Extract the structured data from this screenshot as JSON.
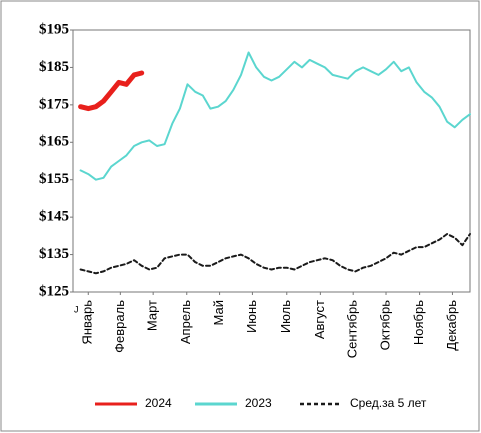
{
  "chart_data": {
    "type": "line",
    "annotations": [
      "J"
    ],
    "x": [
      1,
      2,
      3,
      4,
      5,
      6,
      7,
      8,
      9,
      10,
      11,
      12,
      13,
      14,
      15,
      16,
      17,
      18,
      19,
      20,
      21,
      22,
      23,
      24,
      25,
      26,
      27,
      28,
      29,
      30,
      31,
      32,
      33,
      34,
      35,
      36,
      37,
      38,
      39,
      40,
      41,
      42,
      43,
      44,
      45,
      46,
      47,
      48,
      49,
      50,
      51,
      52
    ],
    "xlim": [
      0,
      52
    ],
    "xticks": [
      {
        "value": 2,
        "label": "Январь"
      },
      {
        "value": 6.2,
        "label": "Февраль"
      },
      {
        "value": 10.5,
        "label": "Март"
      },
      {
        "value": 14.9,
        "label": "Апрель"
      },
      {
        "value": 19.2,
        "label": "Май"
      },
      {
        "value": 23.5,
        "label": "Июнь"
      },
      {
        "value": 28,
        "label": "Июль"
      },
      {
        "value": 32.4,
        "label": "Август"
      },
      {
        "value": 36.7,
        "label": "Сентябрь"
      },
      {
        "value": 41,
        "label": "Октябрь"
      },
      {
        "value": 45.4,
        "label": "Ноябрь"
      },
      {
        "value": 49.7,
        "label": "Декабрь"
      }
    ],
    "ylim": [
      125,
      195
    ],
    "yticks": [
      {
        "value": 125,
        "label": "$125"
      },
      {
        "value": 135,
        "label": "$135"
      },
      {
        "value": 145,
        "label": "$145"
      },
      {
        "value": 155,
        "label": "$155"
      },
      {
        "value": 165,
        "label": "$165"
      },
      {
        "value": 175,
        "label": "$175"
      },
      {
        "value": 185,
        "label": "$185"
      },
      {
        "value": 195,
        "label": "$195"
      }
    ],
    "grid": false,
    "legend": "bottom",
    "series": [
      {
        "name": "2024",
        "color": "#e8201c",
        "width": 5,
        "dashed": false,
        "values": [
          174.5,
          174,
          174.5,
          176,
          178.5,
          181,
          180.5,
          183,
          183.5,
          null,
          null,
          null,
          null,
          null,
          null,
          null,
          null,
          null,
          null,
          null,
          null,
          null,
          null,
          null,
          null,
          null,
          null,
          null,
          null,
          null,
          null,
          null,
          null,
          null,
          null,
          null,
          null,
          null,
          null,
          null,
          null,
          null,
          null,
          null,
          null,
          null,
          null,
          null,
          null,
          null,
          null,
          null
        ]
      },
      {
        "name": "2023",
        "color": "#5bd6cf",
        "width": 2,
        "dashed": false,
        "values": [
          157.5,
          156.5,
          155,
          155.5,
          158.5,
          160,
          161.5,
          164,
          165,
          165.5,
          164,
          164.5,
          170,
          174,
          180.5,
          178.5,
          177.5,
          174,
          174.5,
          176,
          179,
          183,
          189,
          185,
          182.5,
          181.5,
          182.5,
          184.5,
          186.5,
          185,
          187,
          186,
          185,
          183,
          182.5,
          182,
          184,
          185,
          184,
          183,
          184.5,
          186.5,
          184,
          185,
          181,
          178.5,
          177,
          174.5,
          170.5,
          169,
          171,
          172.5
        ]
      },
      {
        "name": "Сред.за 5 лет",
        "color": "#1a1a1a",
        "width": 2,
        "dashed": true,
        "values": [
          131,
          130.5,
          130,
          130.5,
          131.5,
          132,
          132.5,
          133.5,
          132,
          131,
          131.5,
          134,
          134.5,
          135,
          135,
          133,
          132,
          132,
          133,
          134,
          134.5,
          135,
          134,
          132.5,
          131.5,
          131,
          131.5,
          131.5,
          131,
          132,
          133,
          133.5,
          134,
          133.5,
          132,
          131,
          130.5,
          131.5,
          132,
          133,
          134,
          135.5,
          135,
          136,
          137,
          137,
          138,
          139,
          140.5,
          139.5,
          137.5,
          140.5
        ]
      }
    ]
  }
}
